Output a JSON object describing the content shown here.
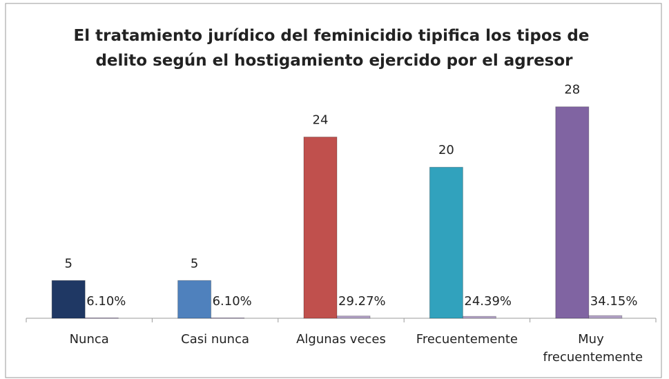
{
  "chart_data": {
    "type": "bar",
    "title": "El tratamiento jurídico del feminicidio tipifica los tipos de delito según el hostigamiento ejercido por el agresor",
    "categories": [
      "Nunca",
      "Casi nunca",
      "Algunas veces",
      "Frecuentemente",
      "Muy frecuentemente"
    ],
    "series": [
      {
        "values": [
          5,
          5,
          24,
          20,
          28
        ],
        "colors": [
          "#1f3864",
          "#4f81bd",
          "#c0504d",
          "#31a2bd",
          "#8064a2"
        ]
      },
      {
        "values": [
          6.1,
          6.1,
          29.27,
          24.39,
          34.15
        ],
        "value_labels": [
          "6.10%",
          "6.10%",
          "29.27%",
          "24.39%",
          "34.15%"
        ],
        "color": "#b3a2c7",
        "axis": "y2"
      }
    ],
    "ylim": [
      0,
      33
    ],
    "y2lim": [
      0,
      3200
    ]
  }
}
